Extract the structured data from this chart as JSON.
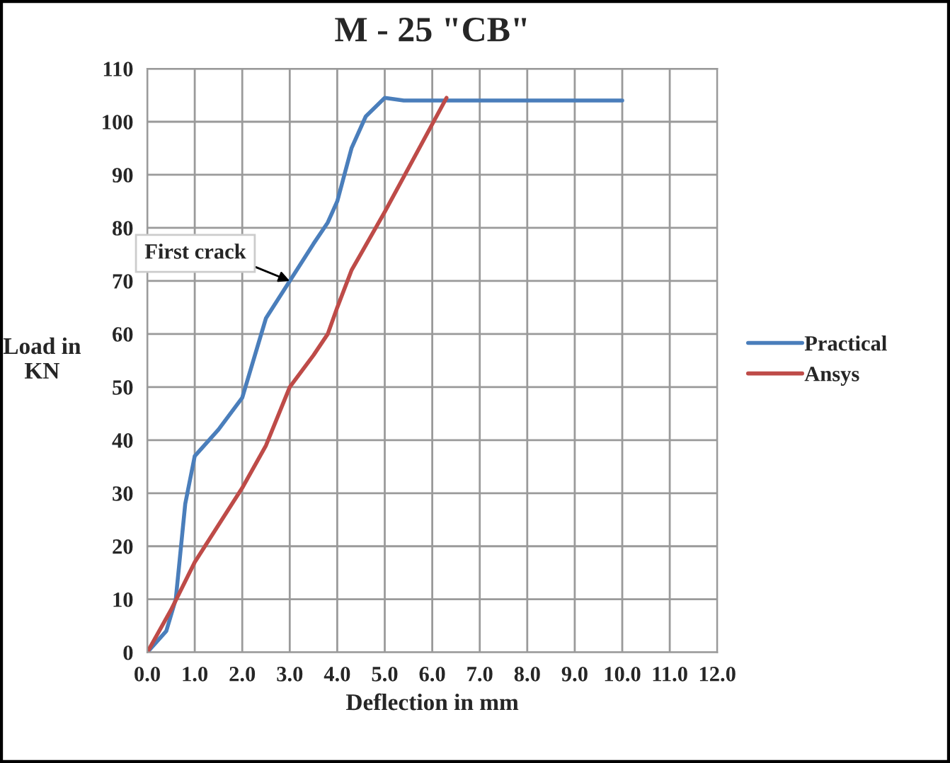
{
  "chart_data": {
    "type": "line",
    "title": "M - 25 \"CB\"",
    "xlabel": "Deflection in mm",
    "ylabel": "Load in\nKN",
    "xlim": [
      0,
      12
    ],
    "xticks": [
      {
        "value": 0,
        "label": "0.0"
      },
      {
        "value": 1,
        "label": "1.0"
      },
      {
        "value": 2,
        "label": "2.0"
      },
      {
        "value": 3,
        "label": "3.0"
      },
      {
        "value": 4,
        "label": "4.0"
      },
      {
        "value": 5,
        "label": "5.0"
      },
      {
        "value": 6,
        "label": "6.0"
      },
      {
        "value": 7,
        "label": "7.0"
      },
      {
        "value": 8,
        "label": "8.0"
      },
      {
        "value": 9,
        "label": "9.0"
      },
      {
        "value": 10,
        "label": "10.0"
      },
      {
        "value": 11,
        "label": "11.0"
      },
      {
        "value": 12,
        "label": "12.0"
      }
    ],
    "ylim": [
      0,
      110
    ],
    "yticks": [
      0,
      10,
      20,
      30,
      40,
      50,
      60,
      70,
      80,
      90,
      100,
      110
    ],
    "grid": true,
    "legend": "right",
    "marker": "none",
    "line_style": "solid",
    "annotations": [
      {
        "text": "First crack",
        "x": 3.0,
        "y": 70
      }
    ],
    "series": [
      {
        "name": "Practical",
        "color": "#4a7ebb",
        "x": [
          0,
          0.4,
          0.6,
          0.8,
          1.0,
          1.5,
          2.0,
          2.3,
          2.5,
          3.0,
          3.5,
          3.8,
          4.0,
          4.3,
          4.6,
          5.0,
          5.4,
          6.0,
          10.0
        ],
        "values": [
          0,
          4,
          10,
          28,
          37,
          42,
          48,
          57,
          63,
          70,
          77,
          81,
          85,
          95,
          101,
          104.5,
          104,
          104,
          104
        ]
      },
      {
        "name": "Ansys",
        "color": "#be4b48",
        "x": [
          0,
          0.5,
          1.0,
          1.5,
          2.0,
          2.5,
          3.0,
          3.5,
          3.8,
          4.0,
          4.3,
          5.0,
          6.3
        ],
        "values": [
          0,
          8,
          17,
          24,
          31,
          39,
          50,
          56,
          60,
          65,
          72,
          83,
          104.5
        ]
      }
    ]
  }
}
